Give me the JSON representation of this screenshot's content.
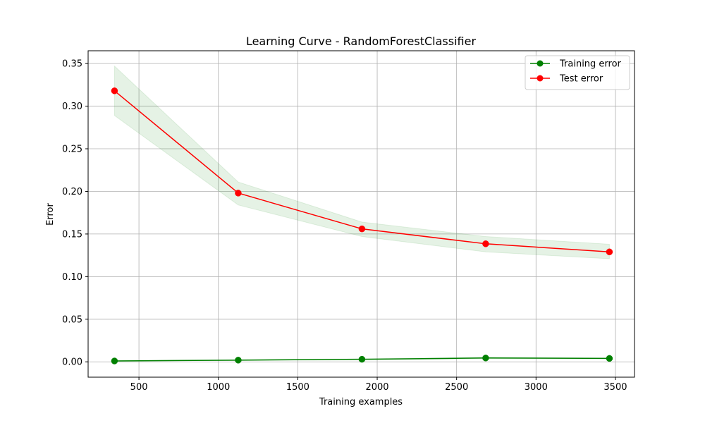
{
  "chart_data": {
    "type": "line",
    "title": "Learning Curve - RandomForestClassifier",
    "xlabel": "Training examples",
    "ylabel": "Error",
    "xlim": [
      180,
      3620
    ],
    "ylim": [
      -0.018,
      0.365
    ],
    "xticks": [
      500,
      1000,
      1500,
      2000,
      2500,
      3000,
      3500
    ],
    "xtick_labels": [
      "500",
      "1000",
      "1500",
      "2000",
      "2500",
      "3000",
      "3500"
    ],
    "yticks": [
      0.0,
      0.05,
      0.1,
      0.15,
      0.2,
      0.25,
      0.3,
      0.35
    ],
    "ytick_labels": [
      "0.00",
      "0.05",
      "0.10",
      "0.15",
      "0.20",
      "0.25",
      "0.30",
      "0.35"
    ],
    "grid": true,
    "legend_position": "top-right",
    "x": [
      346,
      1125,
      1904,
      2683,
      3462
    ],
    "series": [
      {
        "name": "Training error",
        "color": "#008000",
        "values": [
          0.001,
          0.002,
          0.003,
          0.0045,
          0.004
        ],
        "band_lower": [
          0.0005,
          0.0015,
          0.0025,
          0.0035,
          0.0035
        ],
        "band_upper": [
          0.0015,
          0.0025,
          0.0035,
          0.0055,
          0.0045
        ],
        "band_color": "#008000"
      },
      {
        "name": "Test error",
        "color": "#ff0000",
        "values": [
          0.318,
          0.198,
          0.156,
          0.1385,
          0.129
        ],
        "band_lower": [
          0.289,
          0.184,
          0.147,
          0.129,
          0.121
        ],
        "band_upper": [
          0.347,
          0.211,
          0.164,
          0.147,
          0.138
        ],
        "band_color": "#008000"
      }
    ]
  }
}
